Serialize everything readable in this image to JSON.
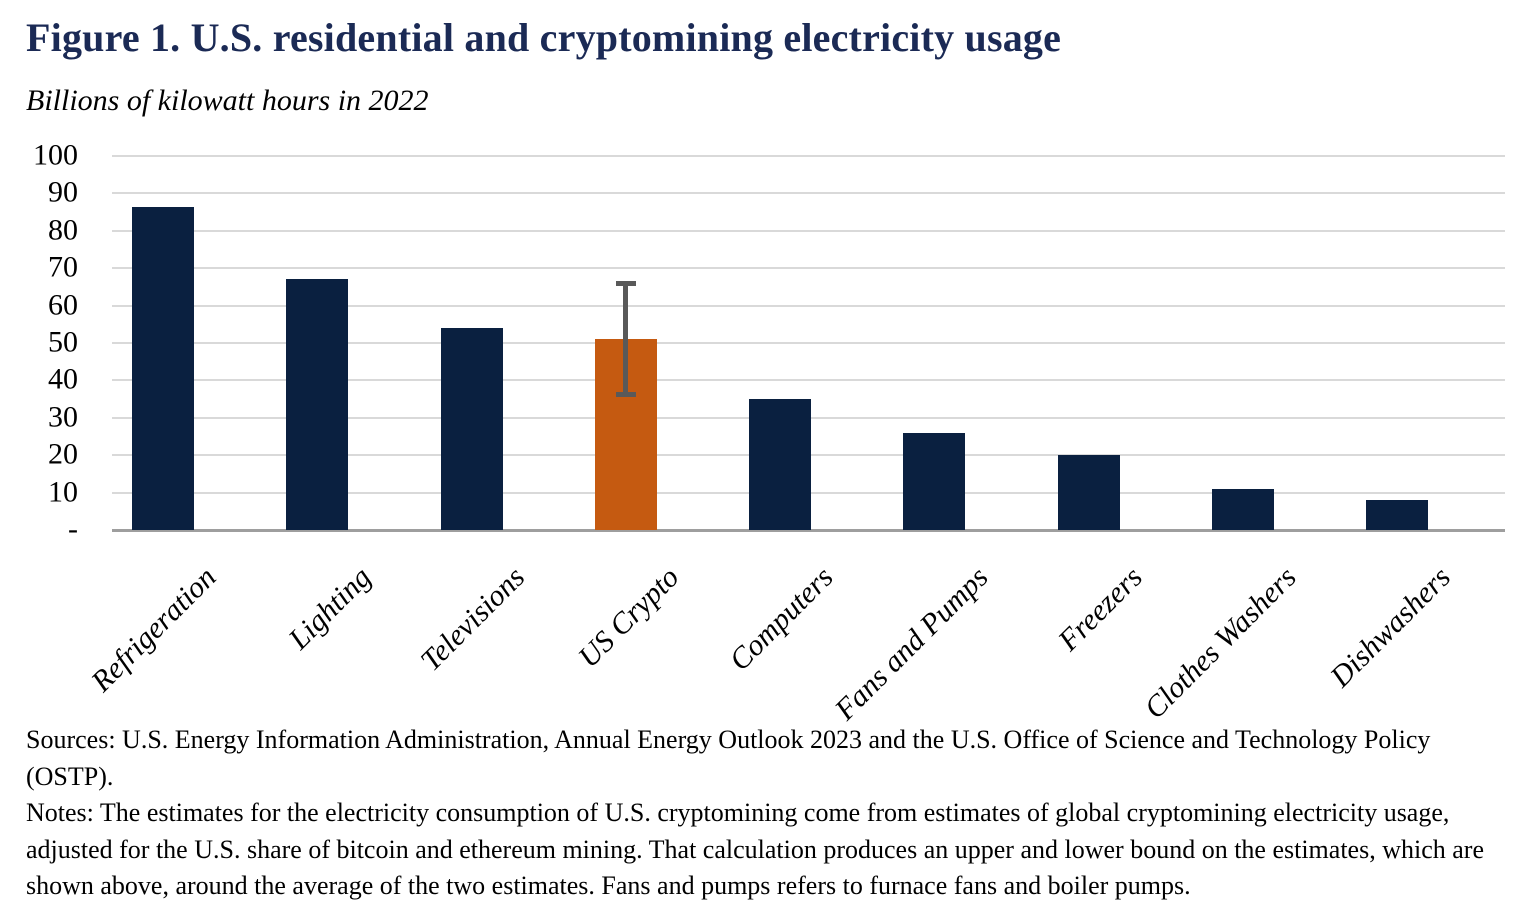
{
  "header": {
    "title": "Figure 1. U.S. residential and cryptomining electricity usage",
    "subtitle": "Billions of kilowatt hours in 2022"
  },
  "chart_data": {
    "type": "bar",
    "title": "Figure 1. U.S. residential and cryptomining electricity usage",
    "subtitle": "Billions of kilowatt hours in 2022",
    "unit": "billions of kilowatt hours",
    "categories": [
      "Refrigeration",
      "Lighting",
      "Televisions",
      "US Crypto",
      "Computers",
      "Fans and Pumps",
      "Freezers",
      "Clothes Washers",
      "Dishwashers"
    ],
    "values": [
      86.5,
      67,
      54,
      51,
      35,
      26,
      20,
      11,
      8
    ],
    "highlight_category": "US Crypto",
    "error_bar": {
      "category": "US Crypto",
      "low": 36,
      "high": 66
    },
    "ylim": [
      0,
      100
    ],
    "ytick_step": 10,
    "ytick_labels": [
      "-",
      "10",
      "20",
      "30",
      "40",
      "50",
      "60",
      "70",
      "80",
      "90",
      "100"
    ],
    "grid": true,
    "legend": false,
    "xlabel": "",
    "ylabel": "Billions of kilowatt hours in 2022",
    "colors": {
      "bar": "#0a2040",
      "highlight": "#c55a11",
      "error": "#595959",
      "gridline": "#d9d9d9",
      "axis": "#9e9e9e",
      "title": "#1b2a55",
      "text": "#000000"
    }
  },
  "footer": {
    "sources": "Sources: U.S. Energy Information  Administration, Annual Energy Outlook 2023 and the U.S. Office of Science and Technology Policy (OSTP).",
    "notes": "Notes: The estimates for the electricity consumption of U.S. cryptomining come from estimates of global cryptomining electricity usage, adjusted for the U.S. share of bitcoin and ethereum mining. That calculation produces an upper and lower bound on the estimates, which are shown above, around the average of the two estimates. Fans and pumps refers to furnace fans and boiler pumps."
  }
}
